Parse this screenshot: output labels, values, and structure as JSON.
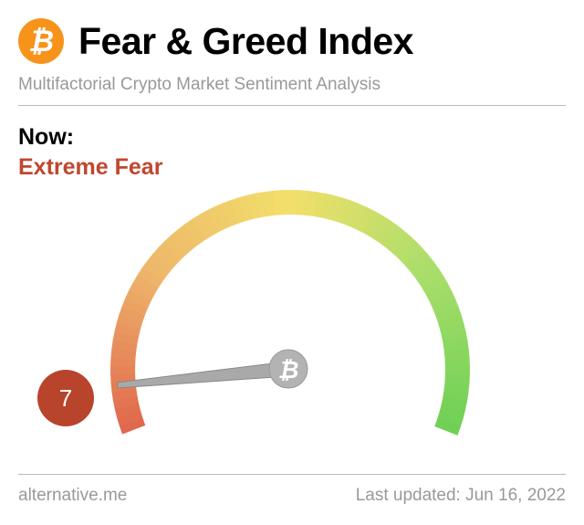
{
  "header": {
    "logo_icon": "bitcoin-icon",
    "title": "Fear & Greed Index",
    "subtitle": "Multifactorial Crypto Market Sentiment Analysis"
  },
  "status": {
    "label": "Now:",
    "classification": "Extreme Fear",
    "value": "7",
    "value_number": 7,
    "scale": [
      0,
      100
    ],
    "classification_color": "#c0472f"
  },
  "gauge": {
    "needle_hub_icon": "bitcoin-icon",
    "colors": [
      "#e0684d",
      "#eeb66a",
      "#f2df6a",
      "#a9de6a",
      "#6fd055"
    ]
  },
  "footer": {
    "source": "alternative.me",
    "updated": "Last updated: Jun 16, 2022"
  }
}
